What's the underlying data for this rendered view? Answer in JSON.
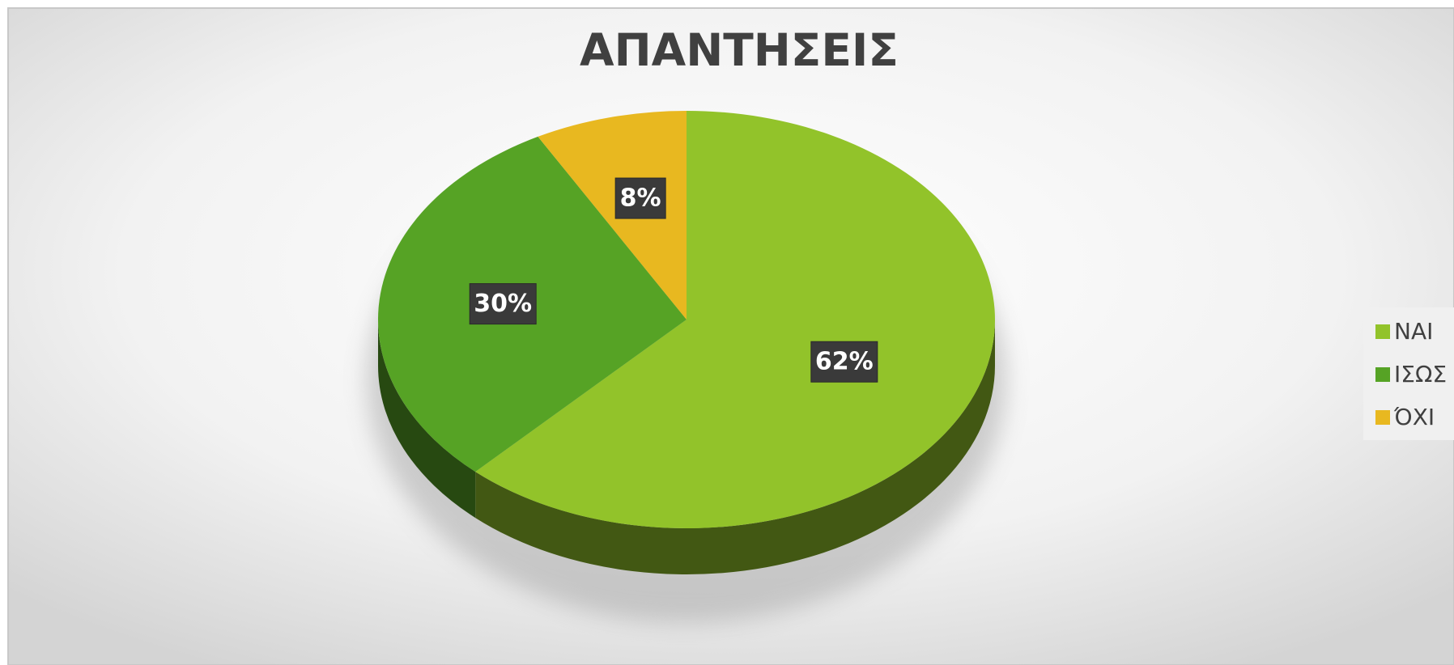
{
  "chart_data": {
    "type": "pie",
    "title": "ΑΠΑΝΤΗΣΕΙΣ",
    "categories": [
      "ΝΑΙ",
      "ΙΣΩΣ",
      "ΌΧΙ"
    ],
    "values": [
      62,
      30,
      8
    ],
    "value_labels": [
      "62%",
      "30%",
      "8%"
    ],
    "colors": [
      "#92c32a",
      "#56a325",
      "#e8b820"
    ],
    "legend": "right"
  }
}
